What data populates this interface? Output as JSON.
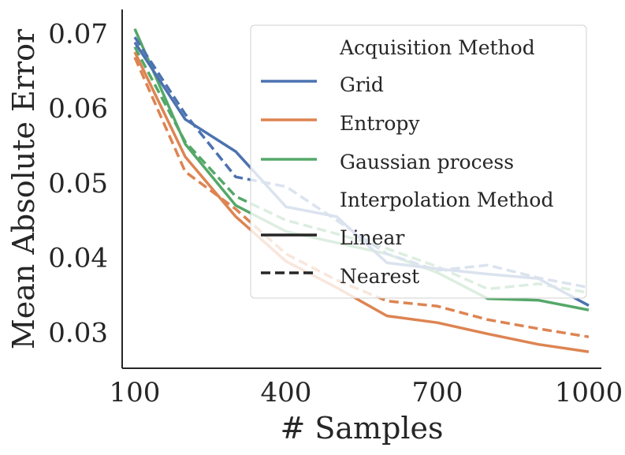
{
  "chart_data": {
    "type": "line",
    "title": "",
    "xlabel": "# Samples",
    "ylabel": "Mean Absolute Error",
    "xlim": [
      75,
      1025
    ],
    "ylim": [
      0.0252,
      0.0732
    ],
    "xticks": [
      100,
      400,
      700,
      1000
    ],
    "xtick_labels": [
      "100",
      "400",
      "700",
      "1000"
    ],
    "yticks": [
      0.03,
      0.04,
      0.05,
      0.06,
      0.07
    ],
    "ytick_labels": [
      "0.03",
      "0.04",
      "0.05",
      "0.06",
      "0.07"
    ],
    "x": [
      100,
      200,
      300,
      400,
      500,
      600,
      700,
      800,
      900,
      1000
    ],
    "colors": {
      "Grid": "#4c72b0",
      "Entropy": "#dd8452",
      "Gaussian process": "#55a868",
      "axis": "#262626"
    },
    "series": [
      {
        "name": "Grid / Linear",
        "acquisition": "Grid",
        "interpolation": "Linear",
        "values": [
          0.0688,
          0.0585,
          0.0542,
          0.0468,
          0.0455,
          0.0393,
          0.0385,
          0.0378,
          0.0372,
          0.0336
        ]
      },
      {
        "name": "Grid / Nearest",
        "acquisition": "Grid",
        "interpolation": "Nearest",
        "values": [
          0.0695,
          0.0592,
          0.0508,
          0.0495,
          0.045,
          0.0405,
          0.0383,
          0.039,
          0.0373,
          0.036
        ]
      },
      {
        "name": "Entropy / Linear",
        "acquisition": "Entropy",
        "interpolation": "Linear",
        "values": [
          0.0675,
          0.0535,
          0.0455,
          0.0395,
          0.036,
          0.0322,
          0.0313,
          0.0298,
          0.0284,
          0.0274
        ]
      },
      {
        "name": "Entropy / Nearest",
        "acquisition": "Entropy",
        "interpolation": "Nearest",
        "values": [
          0.0668,
          0.0515,
          0.0465,
          0.0405,
          0.037,
          0.0342,
          0.0335,
          0.0317,
          0.0305,
          0.0294
        ]
      },
      {
        "name": "Gaussian process / Linear",
        "acquisition": "Gaussian process",
        "interpolation": "Linear",
        "values": [
          0.0706,
          0.0552,
          0.047,
          0.0435,
          0.042,
          0.0405,
          0.038,
          0.0345,
          0.0343,
          0.033
        ]
      },
      {
        "name": "Gaussian process / Nearest",
        "acquisition": "Gaussian process",
        "interpolation": "Nearest",
        "values": [
          0.0682,
          0.0555,
          0.0482,
          0.045,
          0.0432,
          0.0412,
          0.0388,
          0.0358,
          0.0365,
          0.0353
        ]
      }
    ],
    "legend": {
      "location": "upper-right",
      "groups": [
        {
          "title": "Acquisition Method",
          "entries": [
            "Grid",
            "Entropy",
            "Gaussian process"
          ]
        },
        {
          "title": "Interpolation Method",
          "entries": [
            "Linear",
            "Nearest"
          ]
        }
      ]
    },
    "grid": false
  }
}
